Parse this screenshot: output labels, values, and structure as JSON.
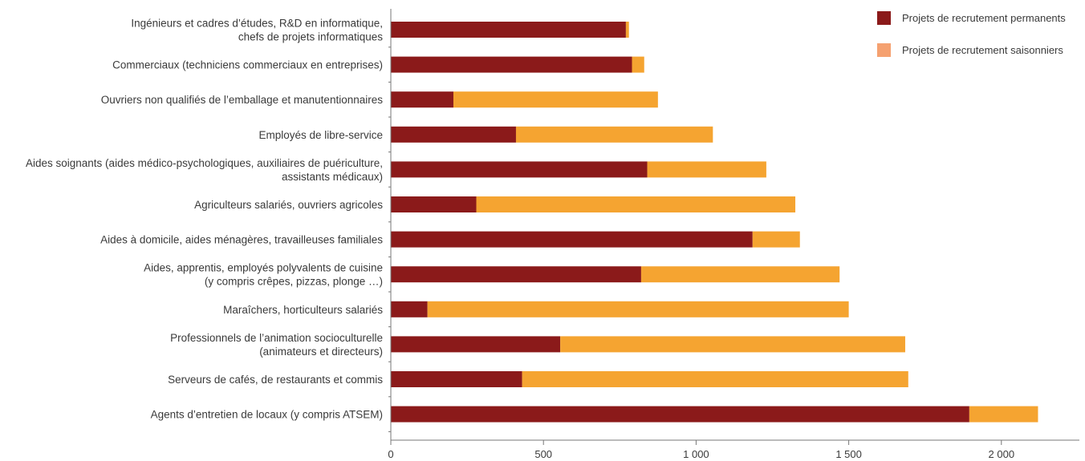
{
  "chart_data": {
    "type": "bar",
    "orientation": "horizontal",
    "stacked": true,
    "categories": [
      [
        "Ingénieurs et cadres d’études, R&D en informatique,",
        "chefs de projets informatiques"
      ],
      [
        "Commerciaux (techniciens commerciaux en entreprises)"
      ],
      [
        "Ouvriers non qualifiés de l’emballage et manutentionnaires"
      ],
      [
        "Employés de libre-service"
      ],
      [
        "Aides soignants (aides médico-psychologiques, auxiliaires de puériculture,",
        "assistants médicaux)"
      ],
      [
        "Agriculteurs salariés, ouvriers agricoles"
      ],
      [
        "Aides à domicile, aides ménagères, travailleuses familiales"
      ],
      [
        "Aides, apprentis, employés polyvalents de cuisine",
        "(y compris crêpes, pizzas, plonge …)"
      ],
      [
        "Maraîchers, horticulteurs salariés"
      ],
      [
        "Professionnels de l’animation socioculturelle",
        "(animateurs et directeurs)"
      ],
      [
        "Serveurs de cafés, de restaurants et commis"
      ],
      [
        "Agents d’entretien de locaux (y compris ATSEM)"
      ]
    ],
    "series": [
      {
        "name": "Projets de recrutement permanents",
        "color": "#8b1a1a",
        "values": [
          770,
          790,
          205,
          410,
          840,
          280,
          1185,
          820,
          120,
          555,
          430,
          1895
        ]
      },
      {
        "name": "Projets de recrutement saisonniers",
        "color": "#f5a431",
        "values": [
          10,
          40,
          670,
          645,
          390,
          1045,
          155,
          650,
          1380,
          1130,
          1265,
          225
        ]
      }
    ],
    "xlim": [
      0,
      2260
    ],
    "xticks": [
      {
        "value": 0,
        "label": "0"
      },
      {
        "value": 500,
        "label": "500"
      },
      {
        "value": 1000,
        "label": "1 000"
      },
      {
        "value": 1500,
        "label": "1 500"
      },
      {
        "value": 2000,
        "label": "2 000"
      }
    ],
    "grid": false,
    "legend_position": "top-right",
    "legend_swatch_colors": [
      "#8b1a1a",
      "#f5a170"
    ]
  }
}
